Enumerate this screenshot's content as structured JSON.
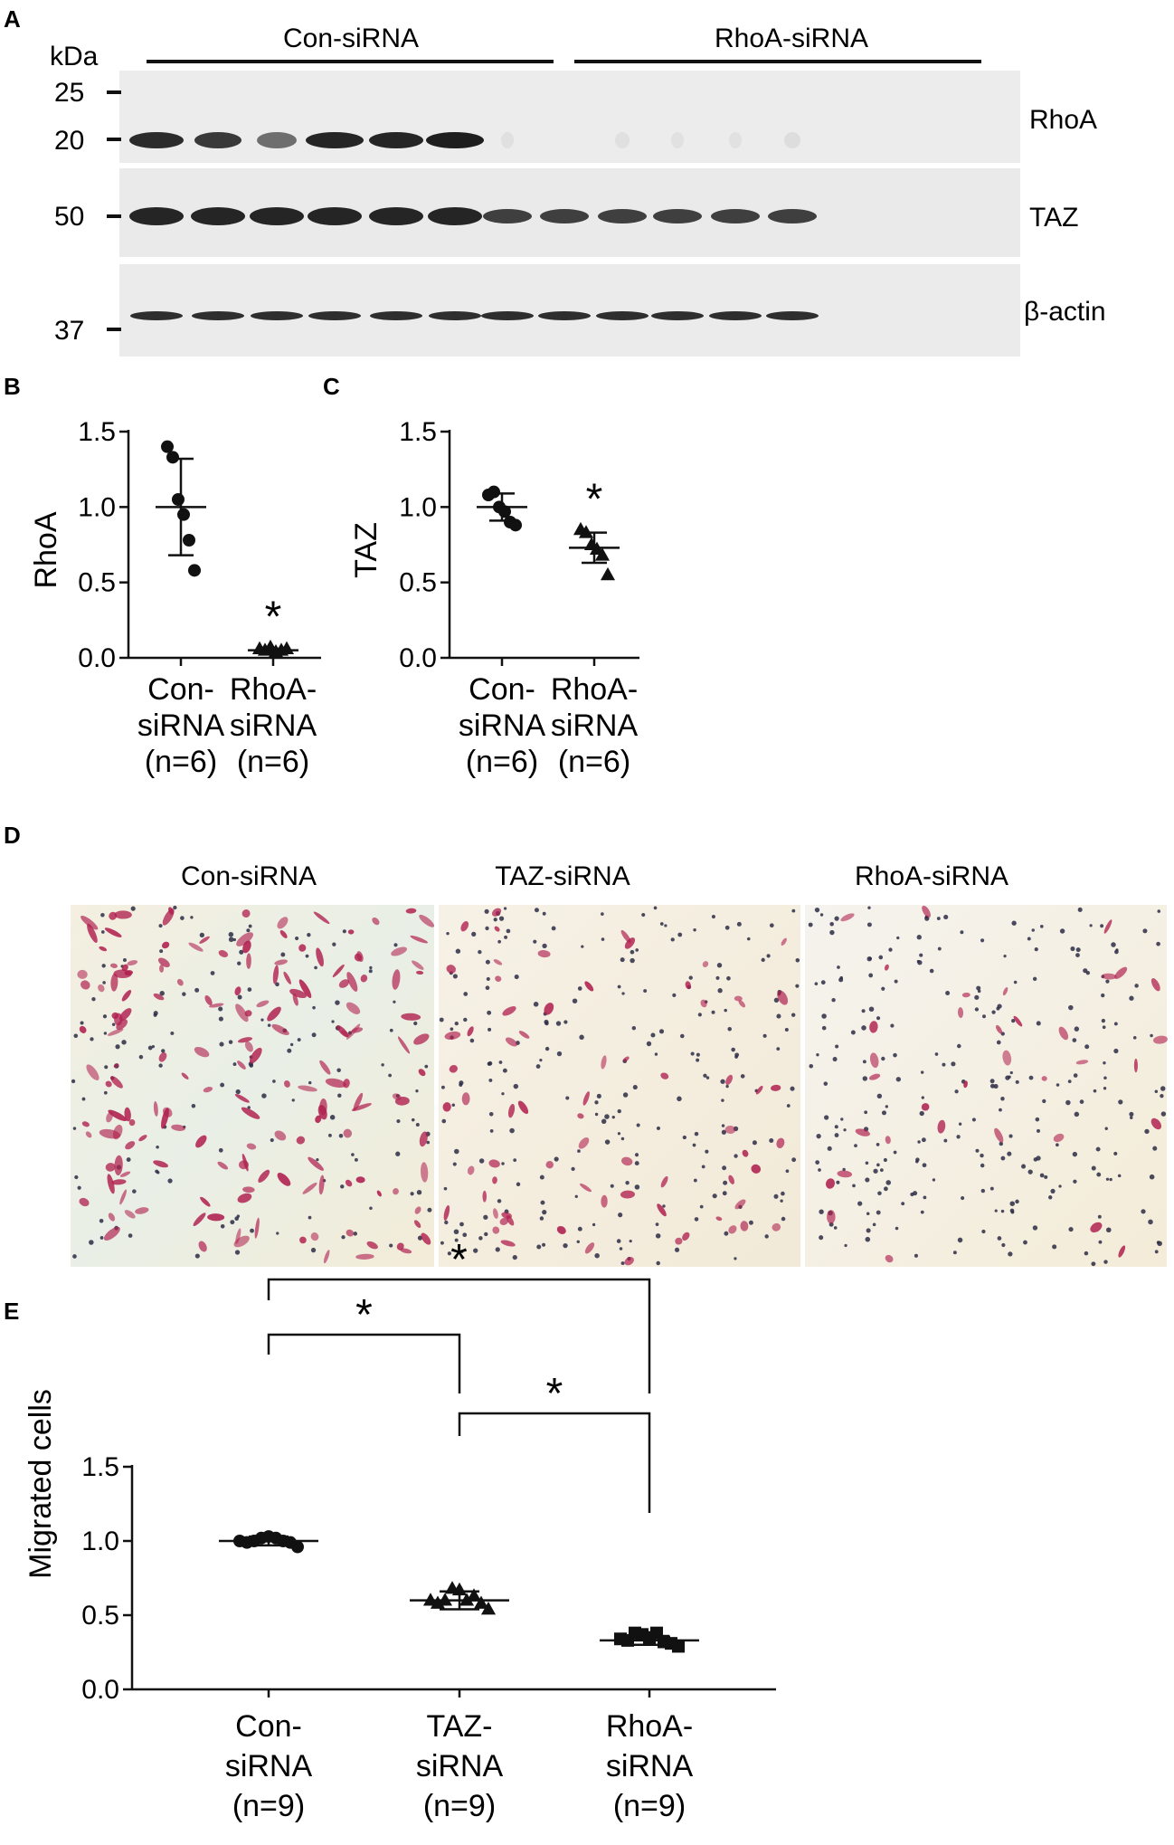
{
  "panels": {
    "A": {
      "letter": "A",
      "kda": "kDa",
      "markers": [
        "25",
        "20",
        "50",
        "37"
      ],
      "group_labels": [
        "Con-siRNA",
        "RhoA-siRNA"
      ],
      "blot_labels": [
        "RhoA",
        "TAZ",
        "β-actin"
      ],
      "lanes_per_group": 6
    },
    "B": {
      "letter": "B"
    },
    "C": {
      "letter": "C"
    },
    "D": {
      "letter": "D",
      "image_titles": [
        "Con-siRNA",
        "TAZ-siRNA",
        "RhoA-siRNA"
      ]
    },
    "E": {
      "letter": "E"
    }
  },
  "significance_symbol": "*",
  "colors": {
    "ink": "#111111",
    "blot_bg": "#ececec",
    "band": "#1a1a1a",
    "stain": "#b0204f",
    "nucleus": "#2b2b45",
    "micro_bg": "#f3efe2"
  },
  "chart_data": [
    {
      "id": "B",
      "type": "scatter",
      "ylabel": "RhoA",
      "ylim": [
        0,
        1.5
      ],
      "yticks": [
        "0.0",
        "0.5",
        "1.0",
        "1.5"
      ],
      "categories": [
        {
          "lines": [
            "Con-",
            "siRNA",
            "(n=6)"
          ]
        },
        {
          "lines": [
            "RhoA-",
            "siRNA",
            "(n=6)"
          ]
        }
      ],
      "series": [
        {
          "marker": "circle",
          "values": [
            1.4,
            1.33,
            1.05,
            0.95,
            0.78,
            0.58
          ],
          "mean": 1.0,
          "sd": 0.32
        },
        {
          "marker": "triangle",
          "values": [
            0.06,
            0.05,
            0.07,
            0.04,
            0.05,
            0.06
          ],
          "mean": 0.05,
          "sd": 0.01
        }
      ],
      "significance": [
        {
          "over": 1
        }
      ]
    },
    {
      "id": "C",
      "type": "scatter",
      "ylabel": "TAZ",
      "ylim": [
        0,
        1.5
      ],
      "yticks": [
        "0.0",
        "0.5",
        "1.0",
        "1.5"
      ],
      "categories": [
        {
          "lines": [
            "Con-",
            "siRNA",
            "(n=6)"
          ]
        },
        {
          "lines": [
            "RhoA-",
            "siRNA",
            "(n=6)"
          ]
        }
      ],
      "series": [
        {
          "marker": "circle",
          "values": [
            1.08,
            1.1,
            1.0,
            0.97,
            0.9,
            0.88
          ],
          "mean": 1.0,
          "sd": 0.09
        },
        {
          "marker": "triangle",
          "values": [
            0.85,
            0.83,
            0.75,
            0.72,
            0.68,
            0.55
          ],
          "mean": 0.73,
          "sd": 0.1
        }
      ],
      "significance": [
        {
          "over": 1
        }
      ]
    },
    {
      "id": "E",
      "type": "scatter",
      "ylabel": "Migrated cells",
      "ylim": [
        0,
        1.5
      ],
      "yticks": [
        "0.0",
        "0.5",
        "1.0",
        "1.5"
      ],
      "categories": [
        {
          "lines": [
            "Con-",
            "siRNA",
            "(n=9)"
          ]
        },
        {
          "lines": [
            "TAZ-",
            "siRNA",
            "(n=9)"
          ]
        },
        {
          "lines": [
            "RhoA-",
            "siRNA",
            "(n=9)"
          ]
        }
      ],
      "series": [
        {
          "marker": "circle",
          "values": [
            1.0,
            0.99,
            1.0,
            1.02,
            1.03,
            1.02,
            1.0,
            0.99,
            0.96
          ],
          "mean": 1.0,
          "sd": 0.03
        },
        {
          "marker": "triangle",
          "values": [
            0.6,
            0.58,
            0.6,
            0.68,
            0.67,
            0.6,
            0.63,
            0.58,
            0.54
          ],
          "mean": 0.6,
          "sd": 0.06
        },
        {
          "marker": "square",
          "values": [
            0.34,
            0.33,
            0.38,
            0.37,
            0.35,
            0.38,
            0.32,
            0.31,
            0.29
          ],
          "mean": 0.33,
          "sd": 0.03
        }
      ],
      "brackets": [
        {
          "from": 0,
          "to": 2
        },
        {
          "from": 0,
          "to": 1
        },
        {
          "from": 1,
          "to": 2
        }
      ]
    }
  ]
}
